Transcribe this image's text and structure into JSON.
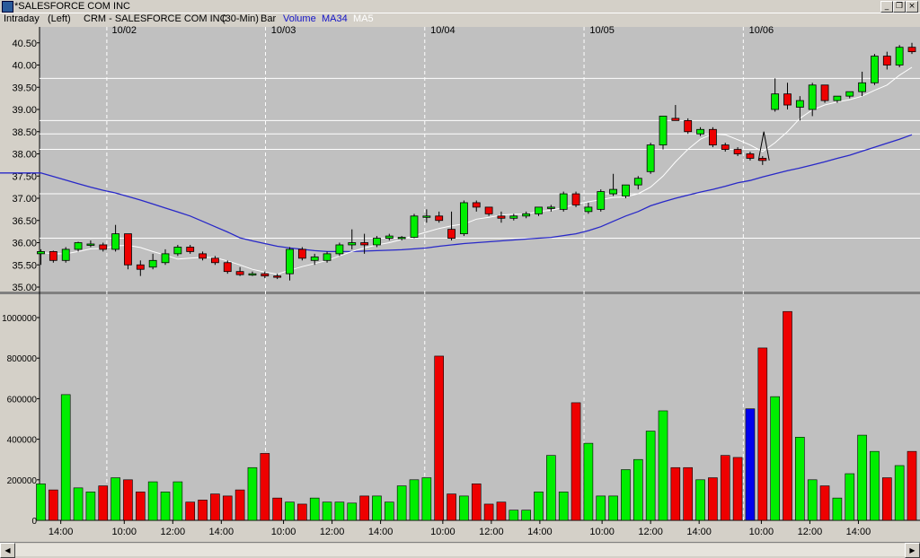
{
  "window": {
    "title": "*SALESFORCE COM INC"
  },
  "header": {
    "mode": "Intraday",
    "axis_side": "(Left)",
    "symbol": "CRM - SALESFORCE COM INC",
    "interval": "(30-Min)",
    "style": "Bar",
    "legend": [
      {
        "label": "Volume",
        "color": "#1414c8"
      },
      {
        "label": "MA34",
        "color": "#1414c8"
      },
      {
        "label": "MA5",
        "color": "#ffffff"
      }
    ]
  },
  "colors": {
    "bg": "#c0c0c0",
    "up": "#00ee00",
    "down": "#ee0000",
    "ma34": "#2828c8",
    "ma5": "#ffffff",
    "highlight": "#0000ee"
  },
  "chart_data": {
    "type": "bar",
    "date_labels": [
      "10/02",
      "10/03",
      "10/04",
      "10/05",
      "10/06"
    ],
    "time_labels": [
      "14:00",
      "10:00",
      "12:00",
      "14:00",
      "10:00",
      "12:00",
      "14:00",
      "10:00",
      "12:00",
      "14:00",
      "10:00",
      "12:00",
      "14:00",
      "10:00",
      "12:00",
      "14:00"
    ],
    "price_ticks": [
      "35.00",
      "35.50",
      "36.00",
      "36.50",
      "37.00",
      "37.50",
      "38.00",
      "38.50",
      "39.00",
      "39.50",
      "40.00",
      "40.50"
    ],
    "volume_ticks": [
      "0",
      "200000",
      "400000",
      "600000",
      "800000",
      "1000000"
    ],
    "price_ylim": [
      35.0,
      40.6
    ],
    "volume_ylim": [
      0,
      1050000
    ],
    "reference_lines": [
      39.7,
      38.75,
      38.45,
      38.1,
      37.1,
      36.1
    ],
    "ohlc": [
      [
        35.75,
        35.85,
        35.5,
        35.8
      ],
      [
        35.8,
        35.82,
        35.55,
        35.6
      ],
      [
        35.6,
        35.9,
        35.55,
        35.85
      ],
      [
        35.85,
        36.02,
        35.8,
        36.0
      ],
      [
        35.95,
        36.05,
        35.9,
        35.97
      ],
      [
        35.95,
        36.0,
        35.8,
        35.85
      ],
      [
        35.85,
        36.4,
        35.8,
        36.2
      ],
      [
        36.2,
        36.2,
        35.4,
        35.5
      ],
      [
        35.5,
        35.6,
        35.25,
        35.4
      ],
      [
        35.45,
        35.75,
        35.4,
        35.6
      ],
      [
        35.55,
        35.85,
        35.5,
        35.75
      ],
      [
        35.75,
        35.95,
        35.7,
        35.9
      ],
      [
        35.9,
        35.95,
        35.75,
        35.8
      ],
      [
        35.75,
        35.8,
        35.6,
        35.65
      ],
      [
        35.65,
        35.7,
        35.5,
        35.55
      ],
      [
        35.55,
        35.6,
        35.3,
        35.35
      ],
      [
        35.35,
        35.45,
        35.25,
        35.28
      ],
      [
        35.28,
        35.35,
        35.25,
        35.3
      ],
      [
        35.3,
        35.35,
        35.2,
        35.25
      ],
      [
        35.25,
        35.3,
        35.18,
        35.22
      ],
      [
        35.3,
        35.9,
        35.15,
        35.85
      ],
      [
        35.85,
        35.9,
        35.6,
        35.65
      ],
      [
        35.6,
        35.75,
        35.5,
        35.68
      ],
      [
        35.6,
        35.8,
        35.55,
        35.75
      ],
      [
        35.75,
        36.0,
        35.7,
        35.95
      ],
      [
        35.95,
        36.3,
        35.85,
        36.0
      ],
      [
        36.0,
        36.2,
        35.75,
        35.95
      ],
      [
        35.95,
        36.15,
        35.9,
        36.1
      ],
      [
        36.1,
        36.2,
        36.05,
        36.15
      ],
      [
        36.1,
        36.15,
        36.05,
        36.12
      ],
      [
        36.12,
        36.65,
        36.1,
        36.6
      ],
      [
        36.6,
        36.75,
        36.45,
        36.6
      ],
      [
        36.6,
        36.7,
        36.45,
        36.5
      ],
      [
        36.3,
        36.7,
        36.05,
        36.1
      ],
      [
        36.2,
        36.95,
        36.15,
        36.9
      ],
      [
        36.9,
        36.95,
        36.7,
        36.8
      ],
      [
        36.8,
        36.8,
        36.6,
        36.65
      ],
      [
        36.6,
        36.7,
        36.45,
        36.55
      ],
      [
        36.55,
        36.65,
        36.5,
        36.6
      ],
      [
        36.6,
        36.7,
        36.55,
        36.65
      ],
      [
        36.65,
        36.8,
        36.6,
        36.8
      ],
      [
        36.8,
        36.85,
        36.7,
        36.8
      ],
      [
        36.75,
        37.15,
        36.7,
        37.1
      ],
      [
        37.1,
        37.15,
        36.8,
        36.85
      ],
      [
        36.7,
        36.9,
        36.65,
        36.8
      ],
      [
        36.75,
        37.2,
        36.7,
        37.15
      ],
      [
        37.1,
        37.55,
        37.05,
        37.2
      ],
      [
        37.05,
        37.3,
        37.0,
        37.3
      ],
      [
        37.3,
        37.5,
        37.2,
        37.45
      ],
      [
        37.6,
        38.25,
        37.55,
        38.2
      ],
      [
        38.2,
        38.85,
        38.1,
        38.85
      ],
      [
        38.8,
        39.1,
        38.75,
        38.75
      ],
      [
        38.75,
        38.8,
        38.45,
        38.5
      ],
      [
        38.45,
        38.6,
        38.4,
        38.55
      ],
      [
        38.55,
        38.6,
        38.15,
        38.2
      ],
      [
        38.2,
        38.25,
        38.05,
        38.1
      ],
      [
        38.1,
        38.15,
        37.95,
        38.0
      ],
      [
        38.0,
        38.05,
        37.85,
        37.9
      ],
      [
        37.9,
        37.95,
        37.75,
        37.85
      ],
      [
        39.0,
        39.7,
        38.95,
        39.35
      ],
      [
        39.35,
        39.6,
        39.0,
        39.1
      ],
      [
        39.05,
        39.3,
        38.75,
        39.2
      ],
      [
        39.0,
        39.6,
        38.85,
        39.55
      ],
      [
        39.55,
        39.55,
        39.15,
        39.2
      ],
      [
        39.2,
        39.3,
        39.15,
        39.3
      ],
      [
        39.3,
        39.4,
        39.25,
        39.4
      ],
      [
        39.4,
        39.85,
        39.3,
        39.6
      ],
      [
        39.6,
        40.25,
        39.55,
        40.2
      ],
      [
        40.2,
        40.3,
        39.9,
        40.0
      ],
      [
        40.0,
        40.45,
        39.95,
        40.4
      ],
      [
        40.4,
        40.5,
        40.25,
        40.3
      ],
      [
        40.3,
        40.45,
        40.2,
        40.3
      ]
    ],
    "volume": [
      180000,
      150000,
      620000,
      160000,
      140000,
      170000,
      210000,
      200000,
      140000,
      190000,
      140000,
      190000,
      90000,
      100000,
      130000,
      120000,
      150000,
      260000,
      330000,
      110000,
      90000,
      80000,
      110000,
      90000,
      90000,
      85000,
      120000,
      120000,
      90000,
      170000,
      200000,
      210000,
      810000,
      130000,
      120000,
      180000,
      80000,
      90000,
      50000,
      50000,
      140000,
      320000,
      140000,
      580000,
      380000,
      120000,
      120000,
      250000,
      300000,
      440000,
      540000,
      260000,
      260000,
      200000,
      210000,
      320000,
      310000,
      550000,
      850000,
      610000,
      1030000,
      410000,
      200000,
      170000,
      110000,
      230000,
      420000,
      340000,
      210000,
      270000,
      340000
    ],
    "volume_highlight_index": 57,
    "ma34": [
      37.57,
      37.49,
      37.41,
      37.33,
      37.25,
      37.18,
      37.12,
      37.04,
      36.96,
      36.87,
      36.78,
      36.69,
      36.6,
      36.48,
      36.36,
      36.24,
      36.11,
      36.04,
      35.98,
      35.92,
      35.88,
      35.85,
      35.82,
      35.8,
      35.8,
      35.8,
      35.81,
      35.82,
      35.83,
      35.84,
      35.86,
      35.88,
      35.92,
      35.95,
      35.98,
      36.0,
      36.02,
      36.04,
      36.06,
      36.08,
      36.1,
      36.12,
      36.16,
      36.2,
      36.27,
      36.36,
      36.48,
      36.6,
      36.7,
      36.83,
      36.92,
      37.0,
      37.07,
      37.14,
      37.2,
      37.27,
      37.35,
      37.4,
      37.48,
      37.55,
      37.62,
      37.68,
      37.75,
      37.82,
      37.9,
      37.97,
      38.06,
      38.15,
      38.24,
      38.33,
      38.43
    ],
    "ma5": [
      35.78,
      35.75,
      35.75,
      35.8,
      35.86,
      35.87,
      35.93,
      35.94,
      35.89,
      35.8,
      35.72,
      35.63,
      35.65,
      35.67,
      35.66,
      35.59,
      35.5,
      35.4,
      35.34,
      35.29,
      35.38,
      35.46,
      35.53,
      35.6,
      35.7,
      35.8,
      35.88,
      35.95,
      36.0,
      36.07,
      36.16,
      36.24,
      36.32,
      36.38,
      36.42,
      36.53,
      36.57,
      36.62,
      36.64,
      36.64,
      36.7,
      36.73,
      36.79,
      36.87,
      36.92,
      36.97,
      37.02,
      37.03,
      37.1,
      37.25,
      37.5,
      37.82,
      38.1,
      38.33,
      38.45,
      38.43,
      38.32,
      38.2,
      38.05,
      38.25,
      38.5,
      38.8,
      38.99,
      39.1,
      39.17,
      39.22,
      39.3,
      39.43,
      39.55,
      39.77,
      39.95
    ]
  }
}
